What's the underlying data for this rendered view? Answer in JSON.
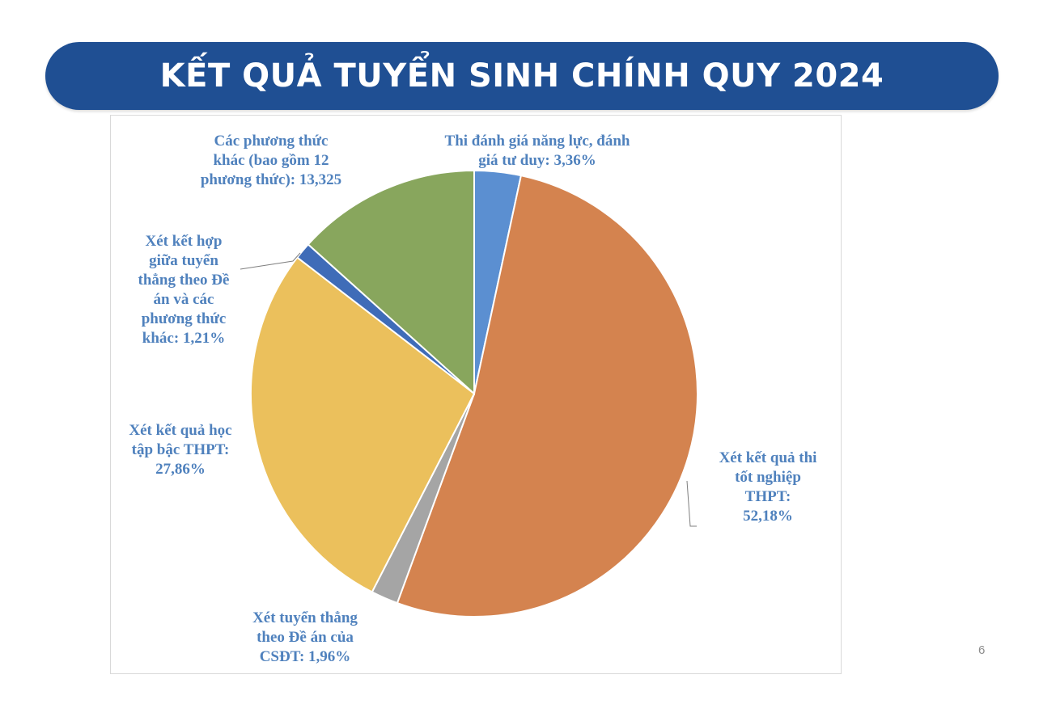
{
  "slide": {
    "title": "KẾT QUẢ TUYỂN SINH CHÍNH QUY 2024",
    "page_number": "6"
  },
  "chart_data": {
    "type": "pie",
    "title": "",
    "slices": [
      {
        "label": "Thi đánh giá năng lực, đánh giá tư duy: 3,36%",
        "value": 3.36,
        "color": "#5b8fd1"
      },
      {
        "label": "Xét kết quả thi tốt nghiệp THPT: 52,18%",
        "value": 52.18,
        "color": "#d4834f"
      },
      {
        "label": "Xét tuyển thẳng theo Đề án của CSĐT: 1,96%",
        "value": 1.96,
        "color": "#a5a5a5"
      },
      {
        "label": "Xét kết quả học tập bậc THPT: 27,86%",
        "value": 27.86,
        "color": "#ebc05c"
      },
      {
        "label": "Xét kết hợp giữa tuyển thẳng theo Đề án và các phương thức khác: 1,21%",
        "value": 1.21,
        "color": "#3f6cb8"
      },
      {
        "label": "Các phương thức khác (bao gồm 12 phương thức): 13,325",
        "value": 13.325,
        "color": "#88a65d"
      }
    ]
  },
  "labels": {
    "danh_gia_nang_luc": [
      "Thi đánh giá năng lực, đánh",
      "giá tư duy: 3,36%"
    ],
    "tot_nghiep": [
      "Xét kết quả thi",
      "tốt nghiệp",
      "THPT:",
      "52,18%"
    ],
    "tuyen_thang": [
      "Xét tuyển thẳng",
      "theo Đề án của",
      "CSĐT: 1,96%"
    ],
    "hoc_tap": [
      "Xét kết quả học",
      "tập bậc THPT:",
      "27,86%"
    ],
    "ket_hop": [
      "Xét kết hợp",
      "giữa tuyển",
      "thẳng theo Đề",
      "án và các",
      "phương thức",
      "khác: 1,21%"
    ],
    "phuong_thuc_khac": [
      "Các phương thức",
      "khác (bao gồm 12",
      "phương thức): 13,325"
    ]
  }
}
